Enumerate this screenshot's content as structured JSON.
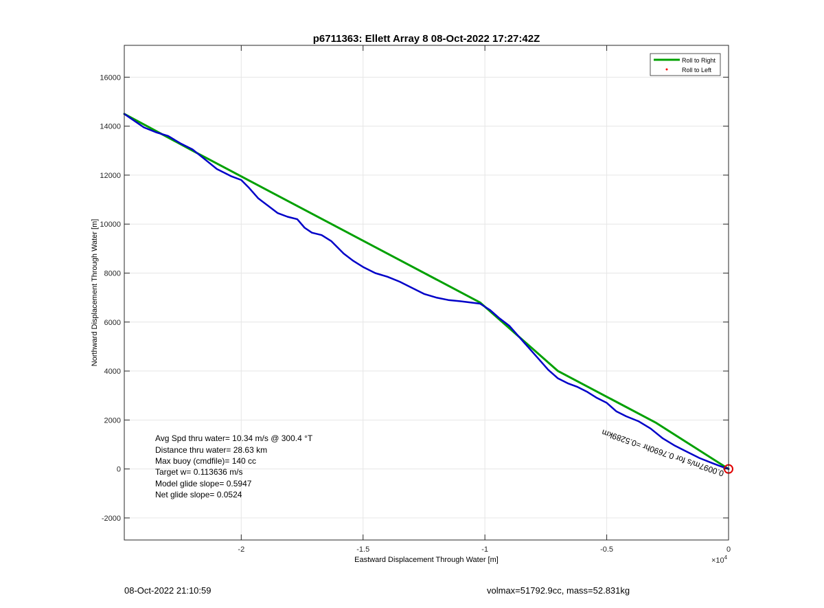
{
  "chart_data": {
    "type": "line",
    "title": "p6711363: Ellett Array 8 08-Oct-2022 17:27:42Z",
    "xlabel": "Eastward Displacement Through Water [m]",
    "ylabel": "Northward Displacement Through Water [m]",
    "x_exponent_label": "×10",
    "x_exponent_power": "4",
    "xlim": [
      -24800,
      0
    ],
    "ylim": [
      -2900,
      17300
    ],
    "xticks": [
      -20000,
      -15000,
      -10000,
      -5000,
      0
    ],
    "xtick_labels": [
      "-2",
      "-1.5",
      "-1",
      "-0.5",
      "0"
    ],
    "yticks": [
      -2000,
      0,
      2000,
      4000,
      6000,
      8000,
      10000,
      12000,
      14000,
      16000
    ],
    "ytick_labels": [
      "-2000",
      "0",
      "2000",
      "4000",
      "6000",
      "8000",
      "10000",
      "12000",
      "14000",
      "16000"
    ],
    "grid": true,
    "legend_position": "top-right",
    "legend": [
      {
        "label": "Roll to Right",
        "color": "#00a000",
        "marker": "line"
      },
      {
        "label": "Roll to Left",
        "color": "#ff0000",
        "marker": "dot"
      }
    ],
    "series": [
      {
        "name": "Roll to Right",
        "color": "#00a000",
        "x": [
          -24800,
          -22000,
          -10200,
          -7000,
          -3000,
          0
        ],
        "y": [
          14500,
          13000,
          6800,
          4000,
          1900,
          0
        ]
      },
      {
        "color": "#0000c8",
        "x": [
          -24800,
          -24000,
          -23500,
          -23000,
          -22500,
          -22000,
          -21500,
          -21000,
          -20400,
          -20000,
          -19700,
          -19300,
          -18900,
          -18500,
          -18100,
          -17700,
          -17400,
          -17100,
          -16700,
          -16300,
          -15800,
          -15400,
          -15000,
          -14500,
          -14000,
          -13500,
          -13000,
          -12500,
          -12000,
          -11500,
          -11000,
          -10600,
          -10200,
          -9800,
          -9400,
          -9000,
          -8600,
          -8200,
          -7800,
          -7400,
          -7000,
          -6600,
          -6200,
          -5800,
          -5400,
          -5000,
          -4600,
          -4200,
          -3700,
          -3200,
          -2700,
          -2200,
          -1700,
          -1200,
          -700,
          -300,
          0
        ],
        "y": [
          14500,
          13950,
          13750,
          13600,
          13300,
          13050,
          12650,
          12250,
          11950,
          11800,
          11500,
          11050,
          10750,
          10450,
          10300,
          10200,
          9850,
          9650,
          9550,
          9300,
          8800,
          8500,
          8250,
          8000,
          7850,
          7650,
          7400,
          7150,
          7000,
          6900,
          6850,
          6800,
          6750,
          6500,
          6150,
          5850,
          5400,
          4950,
          4500,
          4050,
          3700,
          3500,
          3350,
          3150,
          2900,
          2700,
          2350,
          2150,
          1950,
          1650,
          1250,
          950,
          700,
          450,
          250,
          100,
          0
        ]
      }
    ],
    "end_marker": {
      "x": 0,
      "y": 0,
      "shape": "circle",
      "color": "#e00000"
    },
    "annotation_text": "0.0097m/s for 0.7690hr =0.5289km",
    "stats": [
      "Avg Spd thru water= 10.34 m/s @ 300.4 °T",
      "Distance thru water= 28.63 km",
      "Max buoy (cmdfile)= 140 cc",
      "Target w= 0.113636 m/s",
      "Model glide slope= 0.5947",
      "Net glide slope= 0.0524"
    ]
  },
  "footer": {
    "left": "08-Oct-2022 21:10:59",
    "right": "volmax=51792.9cc, mass=52.831kg"
  }
}
